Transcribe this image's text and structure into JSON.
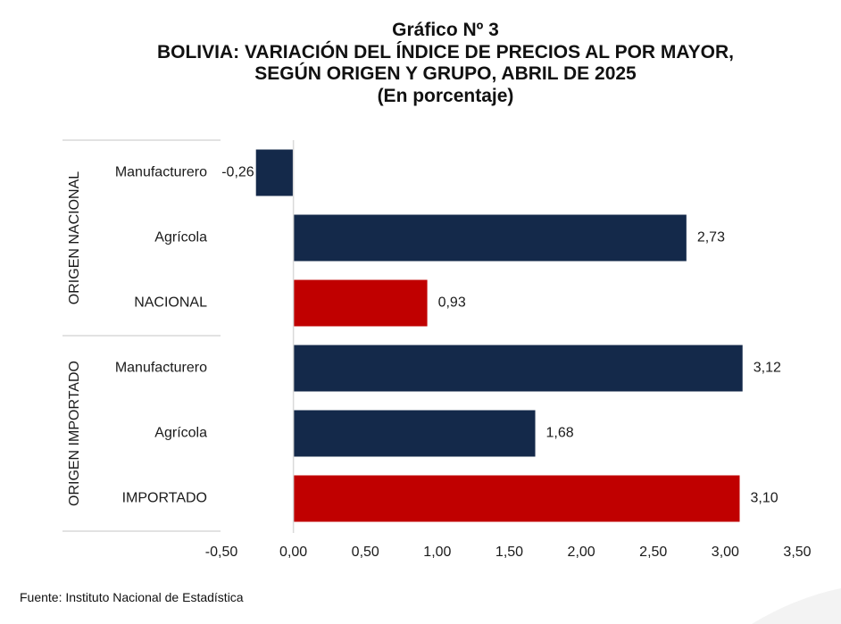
{
  "title": {
    "line1": "Gráfico Nº 3",
    "line2": "BOLIVIA: VARIACIÓN DEL ÍNDICE DE PRECIOS AL POR MAYOR,",
    "line3": "SEGÚN ORIGEN Y GRUPO, ABRIL DE 2025",
    "line4": "(En porcentaje)"
  },
  "source": "Fuente: Instituto Nacional de Estadística",
  "colors": {
    "group": "#14294a",
    "total": "#c00000",
    "axis": "#d9d9d9"
  },
  "chart_data": {
    "type": "bar",
    "orientation": "horizontal",
    "groups": [
      {
        "label": "ORIGEN NACIONAL",
        "items": [
          {
            "category": "Manufacturero",
            "value": -0.26,
            "value_label": "-0,26",
            "kind": "group"
          },
          {
            "category": "Agrícola",
            "value": 2.73,
            "value_label": "2,73",
            "kind": "group"
          },
          {
            "category": "NACIONAL",
            "value": 0.93,
            "value_label": "0,93",
            "kind": "total"
          }
        ]
      },
      {
        "label": "ORIGEN IMPORTADO",
        "items": [
          {
            "category": "Manufacturero",
            "value": 3.12,
            "value_label": "3,12",
            "kind": "group"
          },
          {
            "category": "Agrícola",
            "value": 1.68,
            "value_label": "1,68",
            "kind": "group"
          },
          {
            "category": "IMPORTADO",
            "value": 3.1,
            "value_label": "3,10",
            "kind": "total"
          }
        ]
      }
    ],
    "xlim": [
      -0.5,
      3.5
    ],
    "xticks": [
      -0.5,
      0,
      0.5,
      1.0,
      1.5,
      2.0,
      2.5,
      3.0,
      3.5
    ],
    "xtick_labels": [
      "-0,50",
      "0,00",
      "0,50",
      "1,00",
      "1,50",
      "2,00",
      "2,50",
      "3,00",
      "3,50"
    ],
    "grid": false,
    "legend": "none"
  }
}
